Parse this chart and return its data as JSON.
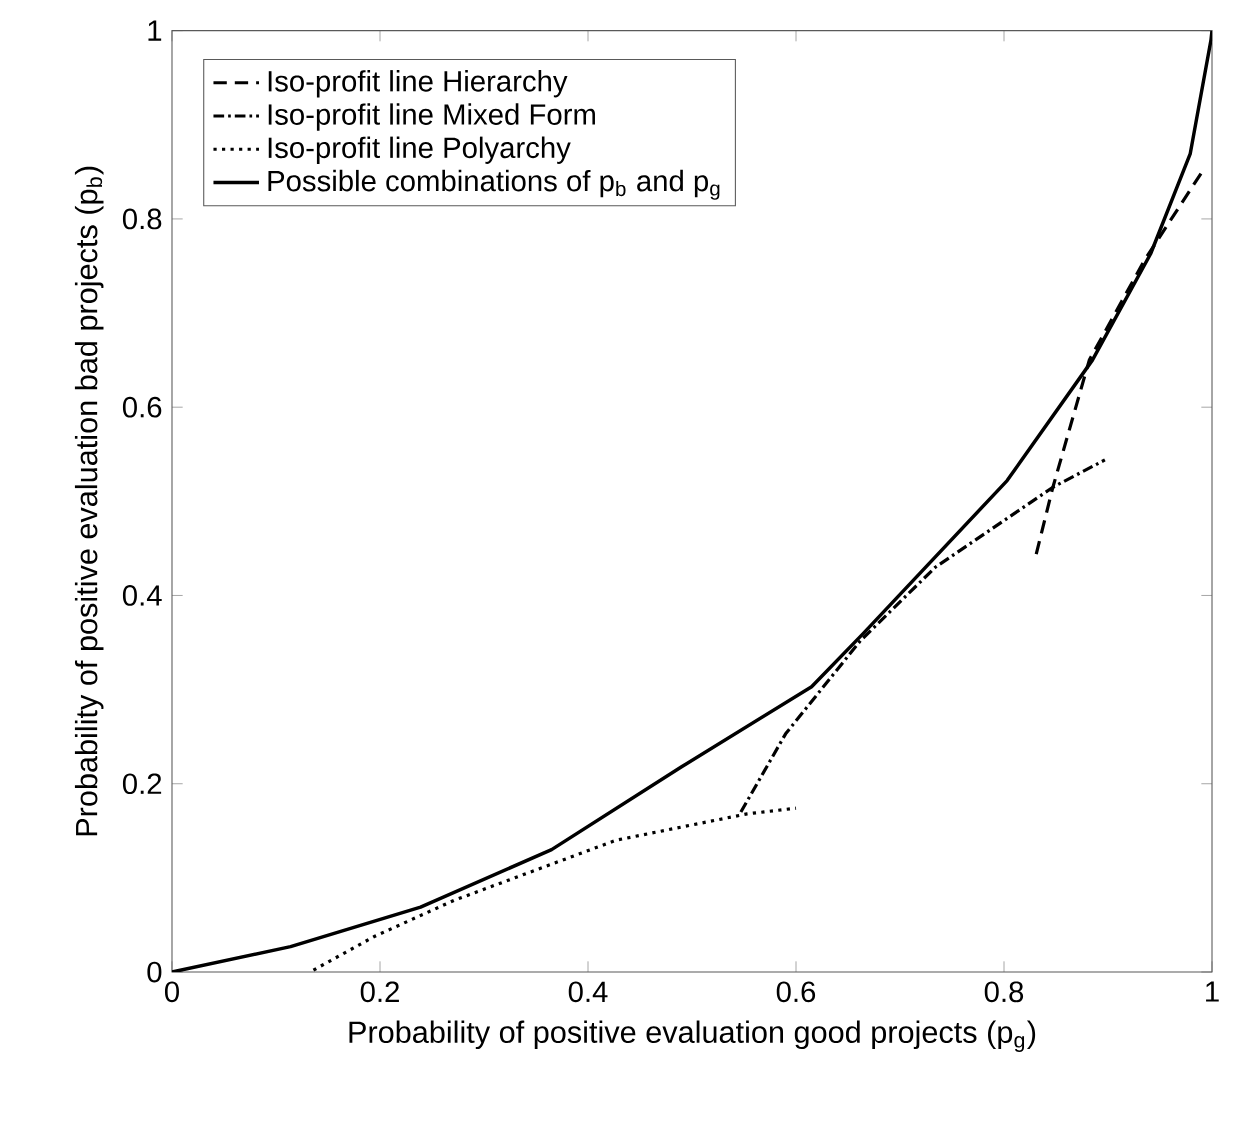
{
  "chart_data": {
    "type": "line",
    "xlabel": "Probability of positive evaluation good projects (p$_{g}$)",
    "ylabel": "Probability of positive evaluation bad projects (p$_{b}$)",
    "xlim": [
      0,
      1
    ],
    "ylim": [
      0,
      1
    ],
    "xticks": [
      0,
      0.2,
      0.4,
      0.6,
      0.8,
      1
    ],
    "yticks": [
      0,
      0.2,
      0.4,
      0.6,
      0.8,
      1
    ],
    "grid": false,
    "legend": "top left",
    "series": [
      {
        "name": "Iso-profit line Hierarchy",
        "color": "#000000",
        "line_style": "dashed",
        "x": [
          0.831,
          0.847,
          0.882,
          0.935,
          0.991
        ],
        "values": [
          0.444,
          0.515,
          0.65,
          0.756,
          0.851
        ]
      },
      {
        "name": "Iso-profit line Mixed Form",
        "color": "#000000",
        "line_style": "dashdot",
        "x": [
          0.547,
          0.59,
          0.662,
          0.734,
          0.847,
          0.897
        ],
        "values": [
          0.17,
          0.253,
          0.352,
          0.43,
          0.515,
          0.544
        ]
      },
      {
        "name": "Iso-profit line Polyarchy",
        "color": "#000000",
        "line_style": "dotted",
        "x": [
          0.136,
          0.195,
          0.271,
          0.427,
          0.553,
          0.6
        ],
        "values": [
          0.002,
          0.038,
          0.076,
          0.14,
          0.168,
          0.174
        ]
      },
      {
        "name": "Possible combinations of p$_{b}$ and p$_{g}$",
        "color": "#000000",
        "line_style": "solid",
        "x": [
          0,
          0.114,
          0.239,
          0.365,
          0.49,
          0.615,
          0.665,
          0.803,
          0.885,
          0.941,
          0.979,
          0.999,
          1
        ],
        "values": [
          0,
          0.027,
          0.069,
          0.13,
          0.218,
          0.303,
          0.36,
          0.522,
          0.65,
          0.763,
          0.869,
          0.99,
          1
        ]
      }
    ]
  }
}
